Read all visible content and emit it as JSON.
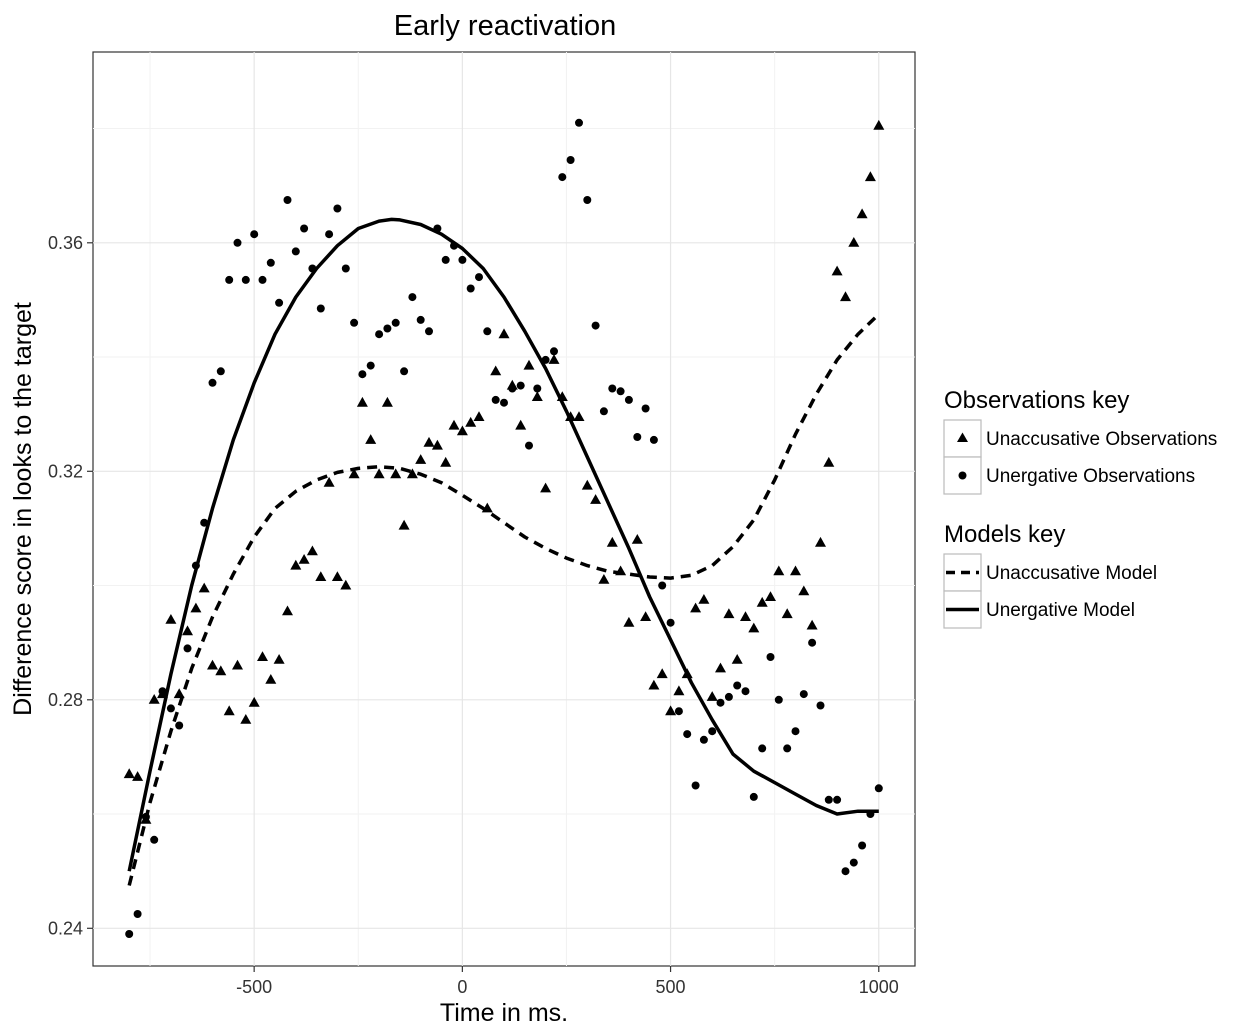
{
  "chart_data": {
    "type": "scatter",
    "title": "Early reactivation",
    "xlabel": "Time in ms.",
    "ylabel": "Difference score in looks to the target",
    "xlim": [
      -887,
      1087
    ],
    "ylim": [
      0.2334,
      0.3934
    ],
    "xticks": [
      -500,
      0,
      500,
      1000
    ],
    "xtick_labels": [
      "-500",
      "0",
      "500",
      "1000"
    ],
    "yticks": [
      0.24,
      0.28,
      0.32,
      0.36
    ],
    "ytick_labels": [
      "0.24",
      "0.28",
      "0.32",
      "0.36"
    ],
    "grid": true,
    "legend_position": "right",
    "legend": {
      "observations_title": "Observations key",
      "observations_items": [
        {
          "label": "Unaccusative Observations",
          "shape": "triangle"
        },
        {
          "label": "Unergative Observations",
          "shape": "circle"
        }
      ],
      "models_title": "Models key",
      "models_items": [
        {
          "label": "Unaccusative Model",
          "line": "dashed"
        },
        {
          "label": "Unergative Model",
          "line": "solid"
        }
      ]
    },
    "series": [
      {
        "name": "Unaccusative Observations",
        "kind": "points",
        "shape": "triangle",
        "points": [
          [
            -800,
            0.267
          ],
          [
            -780,
            0.2665
          ],
          [
            -760,
            0.259
          ],
          [
            -740,
            0.28
          ],
          [
            -720,
            0.281
          ],
          [
            -700,
            0.294
          ],
          [
            -680,
            0.281
          ],
          [
            -660,
            0.292
          ],
          [
            -640,
            0.296
          ],
          [
            -620,
            0.2995
          ],
          [
            -600,
            0.286
          ],
          [
            -580,
            0.285
          ],
          [
            -560,
            0.278
          ],
          [
            -540,
            0.286
          ],
          [
            -520,
            0.2765
          ],
          [
            -500,
            0.2795
          ],
          [
            -480,
            0.2875
          ],
          [
            -460,
            0.2835
          ],
          [
            -440,
            0.287
          ],
          [
            -420,
            0.2955
          ],
          [
            -400,
            0.3035
          ],
          [
            -380,
            0.3045
          ],
          [
            -360,
            0.306
          ],
          [
            -340,
            0.3015
          ],
          [
            -320,
            0.318
          ],
          [
            -300,
            0.3015
          ],
          [
            -280,
            0.3
          ],
          [
            -260,
            0.3195
          ],
          [
            -240,
            0.332
          ],
          [
            -220,
            0.3255
          ],
          [
            -200,
            0.3195
          ],
          [
            -180,
            0.332
          ],
          [
            -160,
            0.3195
          ],
          [
            -140,
            0.3105
          ],
          [
            -120,
            0.3195
          ],
          [
            -100,
            0.322
          ],
          [
            -80,
            0.325
          ],
          [
            -60,
            0.3245
          ],
          [
            -40,
            0.3215
          ],
          [
            -20,
            0.328
          ],
          [
            0,
            0.327
          ],
          [
            20,
            0.3285
          ],
          [
            40,
            0.3295
          ],
          [
            60,
            0.3135
          ],
          [
            80,
            0.3375
          ],
          [
            100,
            0.344
          ],
          [
            120,
            0.335
          ],
          [
            140,
            0.328
          ],
          [
            160,
            0.3385
          ],
          [
            180,
            0.333
          ],
          [
            200,
            0.317
          ],
          [
            220,
            0.3395
          ],
          [
            240,
            0.333
          ],
          [
            260,
            0.3295
          ],
          [
            280,
            0.3295
          ],
          [
            300,
            0.3175
          ],
          [
            320,
            0.315
          ],
          [
            340,
            0.301
          ],
          [
            360,
            0.3075
          ],
          [
            380,
            0.3025
          ],
          [
            400,
            0.2935
          ],
          [
            420,
            0.308
          ],
          [
            440,
            0.2945
          ],
          [
            460,
            0.2825
          ],
          [
            480,
            0.2845
          ],
          [
            500,
            0.278
          ],
          [
            520,
            0.2815
          ],
          [
            540,
            0.2845
          ],
          [
            560,
            0.296
          ],
          [
            580,
            0.2975
          ],
          [
            600,
            0.2805
          ],
          [
            620,
            0.2855
          ],
          [
            640,
            0.295
          ],
          [
            660,
            0.287
          ],
          [
            680,
            0.2945
          ],
          [
            700,
            0.2925
          ],
          [
            720,
            0.297
          ],
          [
            740,
            0.298
          ],
          [
            760,
            0.3025
          ],
          [
            780,
            0.295
          ],
          [
            800,
            0.3025
          ],
          [
            820,
            0.299
          ],
          [
            840,
            0.293
          ],
          [
            860,
            0.3075
          ],
          [
            880,
            0.3215
          ],
          [
            900,
            0.355
          ],
          [
            920,
            0.3505
          ],
          [
            940,
            0.36
          ],
          [
            960,
            0.365
          ],
          [
            980,
            0.3715
          ],
          [
            1000,
            0.3805
          ]
        ]
      },
      {
        "name": "Unergative Observations",
        "kind": "points",
        "shape": "circle",
        "points": [
          [
            -800,
            0.239
          ],
          [
            -780,
            0.2425
          ],
          [
            -760,
            0.2595
          ],
          [
            -740,
            0.2555
          ],
          [
            -720,
            0.2815
          ],
          [
            -700,
            0.2785
          ],
          [
            -680,
            0.2755
          ],
          [
            -660,
            0.289
          ],
          [
            -640,
            0.3035
          ],
          [
            -620,
            0.311
          ],
          [
            -600,
            0.3355
          ],
          [
            -580,
            0.3375
          ],
          [
            -560,
            0.3535
          ],
          [
            -540,
            0.36
          ],
          [
            -520,
            0.3535
          ],
          [
            -500,
            0.3615
          ],
          [
            -480,
            0.3535
          ],
          [
            -460,
            0.3565
          ],
          [
            -440,
            0.3495
          ],
          [
            -420,
            0.3675
          ],
          [
            -400,
            0.3585
          ],
          [
            -380,
            0.3625
          ],
          [
            -360,
            0.3555
          ],
          [
            -340,
            0.3485
          ],
          [
            -320,
            0.3615
          ],
          [
            -300,
            0.366
          ],
          [
            -280,
            0.3555
          ],
          [
            -260,
            0.346
          ],
          [
            -240,
            0.337
          ],
          [
            -220,
            0.3385
          ],
          [
            -200,
            0.344
          ],
          [
            -180,
            0.345
          ],
          [
            -160,
            0.346
          ],
          [
            -140,
            0.3375
          ],
          [
            -120,
            0.3505
          ],
          [
            -100,
            0.3465
          ],
          [
            -80,
            0.3445
          ],
          [
            -60,
            0.3625
          ],
          [
            -40,
            0.357
          ],
          [
            -20,
            0.3595
          ],
          [
            0,
            0.357
          ],
          [
            20,
            0.352
          ],
          [
            40,
            0.354
          ],
          [
            60,
            0.3445
          ],
          [
            80,
            0.3325
          ],
          [
            100,
            0.332
          ],
          [
            120,
            0.3345
          ],
          [
            140,
            0.335
          ],
          [
            160,
            0.3245
          ],
          [
            180,
            0.3345
          ],
          [
            200,
            0.3395
          ],
          [
            220,
            0.341
          ],
          [
            240,
            0.3715
          ],
          [
            260,
            0.3745
          ],
          [
            280,
            0.381
          ],
          [
            300,
            0.3675
          ],
          [
            320,
            0.3455
          ],
          [
            340,
            0.3305
          ],
          [
            360,
            0.3345
          ],
          [
            380,
            0.334
          ],
          [
            400,
            0.3325
          ],
          [
            420,
            0.326
          ],
          [
            440,
            0.331
          ],
          [
            460,
            0.3255
          ],
          [
            480,
            0.3
          ],
          [
            500,
            0.2935
          ],
          [
            520,
            0.278
          ],
          [
            540,
            0.274
          ],
          [
            560,
            0.265
          ],
          [
            580,
            0.273
          ],
          [
            600,
            0.2745
          ],
          [
            620,
            0.2795
          ],
          [
            640,
            0.2805
          ],
          [
            660,
            0.2825
          ],
          [
            680,
            0.2815
          ],
          [
            700,
            0.263
          ],
          [
            720,
            0.2715
          ],
          [
            740,
            0.2875
          ],
          [
            760,
            0.28
          ],
          [
            780,
            0.2715
          ],
          [
            800,
            0.2745
          ],
          [
            820,
            0.281
          ],
          [
            840,
            0.29
          ],
          [
            860,
            0.279
          ],
          [
            880,
            0.2625
          ],
          [
            900,
            0.2625
          ],
          [
            920,
            0.25
          ],
          [
            940,
            0.2515
          ],
          [
            960,
            0.2545
          ],
          [
            980,
            0.26
          ],
          [
            1000,
            0.2645
          ]
        ]
      },
      {
        "name": "Unaccusative Model",
        "kind": "line",
        "dash": "dashed",
        "points": [
          [
            -800,
            0.2475
          ],
          [
            -750,
            0.262
          ],
          [
            -700,
            0.2745
          ],
          [
            -650,
            0.2855
          ],
          [
            -600,
            0.2945
          ],
          [
            -550,
            0.302
          ],
          [
            -500,
            0.3085
          ],
          [
            -450,
            0.3135
          ],
          [
            -400,
            0.3165
          ],
          [
            -350,
            0.3185
          ],
          [
            -300,
            0.3198
          ],
          [
            -250,
            0.3205
          ],
          [
            -200,
            0.3208
          ],
          [
            -150,
            0.3205
          ],
          [
            -100,
            0.3195
          ],
          [
            -50,
            0.318
          ],
          [
            0,
            0.3158
          ],
          [
            50,
            0.3135
          ],
          [
            100,
            0.311
          ],
          [
            150,
            0.3085
          ],
          [
            200,
            0.3065
          ],
          [
            250,
            0.3048
          ],
          [
            300,
            0.3035
          ],
          [
            350,
            0.3025
          ],
          [
            400,
            0.302
          ],
          [
            450,
            0.3015
          ],
          [
            500,
            0.3013
          ],
          [
            550,
            0.3018
          ],
          [
            600,
            0.3035
          ],
          [
            650,
            0.3068
          ],
          [
            700,
            0.3115
          ],
          [
            750,
            0.3185
          ],
          [
            800,
            0.3265
          ],
          [
            850,
            0.3335
          ],
          [
            900,
            0.3395
          ],
          [
            950,
            0.344
          ],
          [
            1000,
            0.3475
          ]
        ]
      },
      {
        "name": "Unergative Model",
        "kind": "line",
        "dash": "solid",
        "points": [
          [
            -800,
            0.25
          ],
          [
            -750,
            0.2675
          ],
          [
            -700,
            0.2845
          ],
          [
            -650,
            0.3
          ],
          [
            -600,
            0.3135
          ],
          [
            -550,
            0.3255
          ],
          [
            -500,
            0.3355
          ],
          [
            -450,
            0.344
          ],
          [
            -400,
            0.3505
          ],
          [
            -350,
            0.3555
          ],
          [
            -300,
            0.3595
          ],
          [
            -250,
            0.3625
          ],
          [
            -200,
            0.3638
          ],
          [
            -170,
            0.3641
          ],
          [
            -150,
            0.364
          ],
          [
            -100,
            0.3632
          ],
          [
            -50,
            0.3615
          ],
          [
            0,
            0.359
          ],
          [
            50,
            0.3555
          ],
          [
            100,
            0.3505
          ],
          [
            150,
            0.3445
          ],
          [
            200,
            0.338
          ],
          [
            250,
            0.3305
          ],
          [
            300,
            0.3225
          ],
          [
            350,
            0.3145
          ],
          [
            400,
            0.3065
          ],
          [
            450,
            0.298
          ],
          [
            500,
            0.2905
          ],
          [
            550,
            0.283
          ],
          [
            600,
            0.2765
          ],
          [
            650,
            0.2705
          ],
          [
            700,
            0.2675
          ],
          [
            750,
            0.2655
          ],
          [
            800,
            0.2635
          ],
          [
            850,
            0.2615
          ],
          [
            900,
            0.26
          ],
          [
            950,
            0.2605
          ],
          [
            1000,
            0.2605
          ]
        ]
      }
    ]
  }
}
